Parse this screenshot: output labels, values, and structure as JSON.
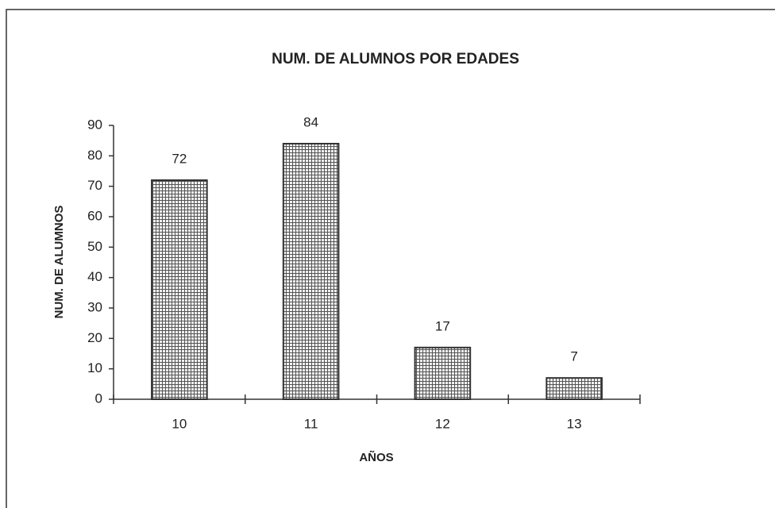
{
  "chart_data": {
    "type": "bar",
    "title": "NUM. DE ALUMNOS POR EDADES",
    "x_label": "AÑOS",
    "y_label": "NUM. DE ALUMNOS",
    "categories": [
      "10",
      "11",
      "12",
      "13"
    ],
    "values": [
      72,
      84,
      17,
      7
    ],
    "color": "#9a9a9a",
    "ylim": [
      0,
      90
    ],
    "yticks": [
      0,
      10,
      20,
      30,
      40,
      50,
      60,
      70,
      80,
      90
    ],
    "grid": false
  }
}
